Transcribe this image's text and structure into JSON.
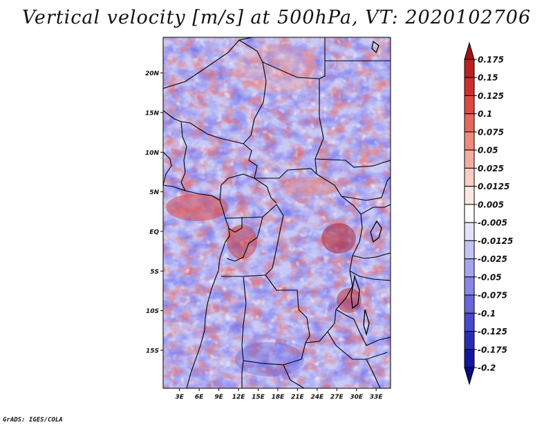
{
  "title": "Vertical velocity [m/s] at 500hPa, VT: 2020102706",
  "credit": "GrADS: IGES/COLA",
  "map": {
    "lat_labels": [
      "20N",
      "15N",
      "10N",
      "5N",
      "EQ",
      "5S",
      "10S",
      "15S"
    ],
    "lat_values": [
      20,
      15,
      10,
      5,
      0,
      -5,
      -10,
      -15
    ],
    "lon_labels": [
      "3E",
      "6E",
      "9E",
      "12E",
      "15E",
      "18E",
      "21E",
      "24E",
      "27E",
      "30E",
      "33E"
    ],
    "lon_values": [
      3,
      6,
      9,
      12,
      15,
      18,
      21,
      24,
      27,
      30,
      33
    ],
    "lat_range": [
      -19.8,
      24.5
    ],
    "lon_range": [
      0.5,
      35.2
    ]
  },
  "colorbar": {
    "labels": [
      "0.175",
      "0.15",
      "0.125",
      "0.1",
      "0.075",
      "0.05",
      "0.025",
      "0.0125",
      "0.005",
      "-0.005",
      "-0.0125",
      "-0.025",
      "-0.05",
      "-0.075",
      "-0.1",
      "-0.125",
      "-0.175",
      "-0.2"
    ],
    "colors": [
      "#a50f15",
      "#be1e22",
      "#cf2f2c",
      "#dd4940",
      "#e7675a",
      "#ef8a7c",
      "#f5aca0",
      "#f9cdc4",
      "#fce8e3",
      "#ffffff",
      "#e2e2fb",
      "#c4c4f4",
      "#a6a6ee",
      "#8787e6",
      "#6767da",
      "#4848cc",
      "#2b2bb8",
      "#15159f",
      "#0a0a7e"
    ]
  }
}
